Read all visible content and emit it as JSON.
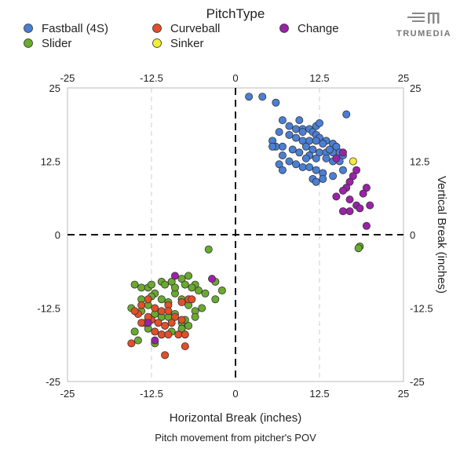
{
  "chart_data": {
    "type": "scatter",
    "legend_title": "PitchType",
    "legend_position": "top",
    "xlabel": "Horizontal Break (inches)",
    "ylabel": "Vertical Break (inches)",
    "caption": "Pitch movement from pitcher's POV",
    "xlim": [
      -25,
      25
    ],
    "ylim": [
      -25,
      25
    ],
    "x_ticks": [
      -25,
      -12.5,
      0,
      12.5,
      25
    ],
    "y_ticks": [
      -25,
      -12.5,
      0,
      12.5,
      25
    ],
    "x_tick_labels": [
      "-25",
      "-12.5",
      "0",
      "12.5",
      "25"
    ],
    "y_tick_labels": [
      "-25",
      "-12.5",
      "0",
      "12.5",
      "25"
    ],
    "grid": "dashed vertical lines at ±12.5, dashed zero lines",
    "brand": "TRUMEDIA",
    "series": [
      {
        "name": "Fastball (4S)",
        "color": "#4a7fd4",
        "points": [
          [
            2,
            23.5
          ],
          [
            4,
            23.5
          ],
          [
            6,
            22.5
          ],
          [
            7,
            19.5
          ],
          [
            5.5,
            16
          ],
          [
            6.5,
            17.5
          ],
          [
            8,
            18.5
          ],
          [
            9,
            18
          ],
          [
            10,
            18
          ],
          [
            11,
            18
          ],
          [
            11.5,
            17.5
          ],
          [
            12,
            17
          ],
          [
            12.5,
            16.5
          ],
          [
            13.5,
            16
          ],
          [
            14.5,
            15.5
          ],
          [
            15,
            15
          ],
          [
            10,
            16
          ],
          [
            11,
            16
          ],
          [
            12,
            16
          ],
          [
            13,
            15.5
          ],
          [
            8,
            17
          ],
          [
            9,
            16.5
          ],
          [
            10.5,
            15
          ],
          [
            11.5,
            14.5
          ],
          [
            12.5,
            14
          ],
          [
            13.5,
            14
          ],
          [
            14.5,
            14
          ],
          [
            15.5,
            14
          ],
          [
            16,
            13.5
          ],
          [
            7,
            15
          ],
          [
            6,
            15
          ],
          [
            5.5,
            15
          ],
          [
            8.5,
            14.5
          ],
          [
            9.5,
            14
          ],
          [
            11,
            13.5
          ],
          [
            12,
            13
          ],
          [
            13.5,
            13
          ],
          [
            14.5,
            12.5
          ],
          [
            15.5,
            12.5
          ],
          [
            8,
            12.5
          ],
          [
            7,
            13.5
          ],
          [
            6.5,
            12
          ],
          [
            9,
            12
          ],
          [
            10,
            11.5
          ],
          [
            11,
            11.5
          ],
          [
            12,
            11
          ],
          [
            13,
            10.5
          ],
          [
            14.5,
            10
          ],
          [
            16,
            11
          ],
          [
            7,
            11
          ],
          [
            11.5,
            9.5
          ],
          [
            12,
            9
          ],
          [
            13,
            9.5
          ],
          [
            16.5,
            20.5
          ],
          [
            10,
            17.5
          ],
          [
            12,
            18.5
          ],
          [
            14,
            14.5
          ],
          [
            10.5,
            13
          ],
          [
            9.5,
            19.5
          ],
          [
            12.5,
            19
          ]
        ]
      },
      {
        "name": "Slider",
        "color": "#6aaa2f",
        "points": [
          [
            -4,
            -2.5
          ],
          [
            -15.5,
            -12.5
          ],
          [
            -15,
            -8.5
          ],
          [
            -14,
            -9
          ],
          [
            -13,
            -9
          ],
          [
            -12.5,
            -8.5
          ],
          [
            -11,
            -8
          ],
          [
            -9.5,
            -8
          ],
          [
            -8,
            -7.5
          ],
          [
            -7,
            -7
          ],
          [
            -6,
            -8.5
          ],
          [
            -5.5,
            -9.5
          ],
          [
            -4.5,
            -10
          ],
          [
            -3,
            -11
          ],
          [
            -2,
            -9.5
          ],
          [
            -12,
            -10
          ],
          [
            -11,
            -11
          ],
          [
            -10,
            -11.5
          ],
          [
            -9,
            -10
          ],
          [
            -8,
            -11
          ],
          [
            -7,
            -12
          ],
          [
            -6,
            -13
          ],
          [
            -5,
            -12.5
          ],
          [
            -13,
            -12
          ],
          [
            -14,
            -13
          ],
          [
            -12,
            -13.5
          ],
          [
            -11,
            -14
          ],
          [
            -10,
            -14
          ],
          [
            -9,
            -13.5
          ],
          [
            -8,
            -15
          ],
          [
            -7,
            -15.5
          ],
          [
            -13,
            -16
          ],
          [
            -14.5,
            -18
          ],
          [
            -12,
            -18.5
          ],
          [
            -11,
            -17
          ],
          [
            -9.5,
            -16.5
          ],
          [
            -8,
            -16
          ],
          [
            -7.5,
            -14.5
          ],
          [
            -6,
            -14
          ],
          [
            -15,
            -16.5
          ],
          [
            -14,
            -11
          ],
          [
            -12.5,
            -10.5
          ],
          [
            -9,
            -9
          ],
          [
            -10.5,
            -8.5
          ],
          [
            -7.5,
            -8.5
          ],
          [
            -6.5,
            -9
          ],
          [
            -3,
            -8
          ]
        ]
      },
      {
        "name": "Curveball",
        "color": "#e0502a",
        "points": [
          [
            -15.5,
            -18.5
          ],
          [
            -14.5,
            -13.5
          ],
          [
            -14,
            -12
          ],
          [
            -13,
            -11
          ],
          [
            -12,
            -12.5
          ],
          [
            -11,
            -13
          ],
          [
            -10,
            -12
          ],
          [
            -9,
            -14
          ],
          [
            -8,
            -14.5
          ],
          [
            -7,
            -11
          ],
          [
            -13.5,
            -15
          ],
          [
            -12.5,
            -14.5
          ],
          [
            -11.5,
            -15
          ],
          [
            -10.5,
            -15.5
          ],
          [
            -9.5,
            -15
          ],
          [
            -12,
            -16.5
          ],
          [
            -11,
            -17
          ],
          [
            -10,
            -17
          ],
          [
            -8.5,
            -17
          ],
          [
            -7.5,
            -17
          ],
          [
            -10.5,
            -20.5
          ],
          [
            -13,
            -14
          ],
          [
            -10,
            -13
          ],
          [
            -8,
            -11.5
          ],
          [
            -6.5,
            -11
          ],
          [
            -15,
            -13
          ],
          [
            -14,
            -15
          ],
          [
            -7.5,
            -19
          ]
        ]
      },
      {
        "name": "Sinker",
        "color": "#f2ec3a",
        "points": [
          [
            17.5,
            12.5
          ]
        ]
      },
      {
        "name": "Change",
        "color": "#9b22a8",
        "points": [
          [
            16,
            14
          ],
          [
            15,
            13
          ],
          [
            18,
            11
          ],
          [
            17.5,
            10
          ],
          [
            17,
            9
          ],
          [
            16.5,
            8
          ],
          [
            19.5,
            8
          ],
          [
            19,
            7
          ],
          [
            17,
            6
          ],
          [
            18,
            5
          ],
          [
            18.5,
            4.5
          ],
          [
            20,
            5
          ],
          [
            16,
            4
          ],
          [
            17,
            4
          ],
          [
            19.5,
            1.5
          ],
          [
            -9,
            -7
          ],
          [
            -13,
            -15
          ],
          [
            -12,
            -18
          ],
          [
            -3.5,
            -7.5
          ],
          [
            15,
            6.5
          ],
          [
            16,
            7.5
          ]
        ]
      }
    ],
    "extra_slider_points_near_change": [
      [
        18.5,
        -2
      ],
      [
        18.3,
        -2.3
      ]
    ]
  }
}
